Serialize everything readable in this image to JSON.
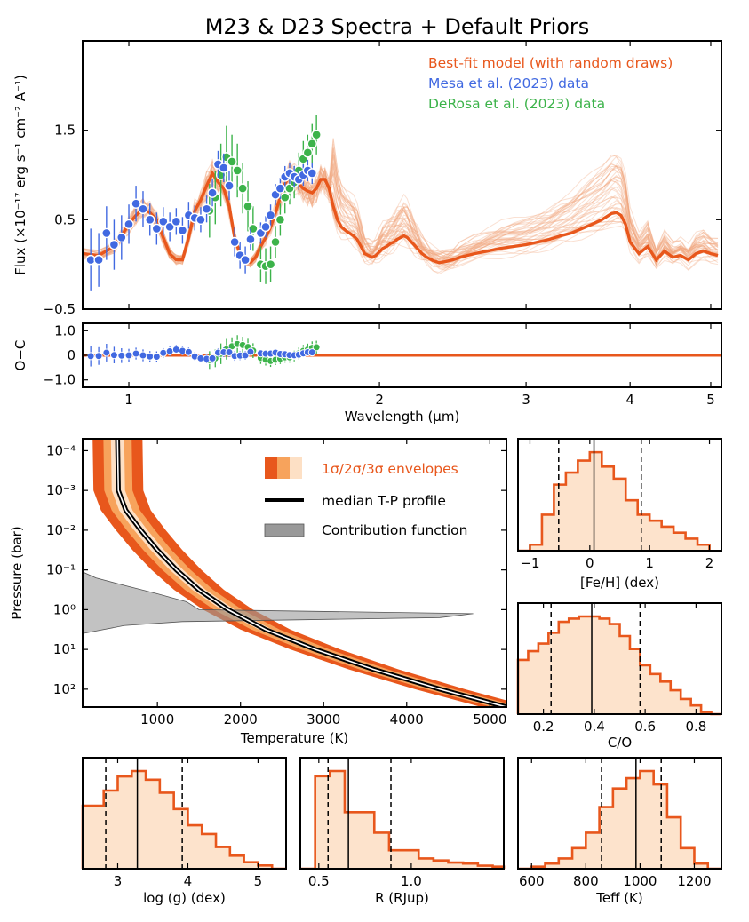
{
  "figure_title": "M23 & D23 Spectra + Default Priors",
  "colors": {
    "model": "#e8571c",
    "draws": "#f1a57f",
    "mesa": "#4169e1",
    "derosa": "#3cb34a",
    "env1": "#e8571c",
    "env2": "#f7a35c",
    "env3": "#fde0c5",
    "hist_fill": "#fde3cc",
    "hist_edge": "#e8571c",
    "contrib": "#999999"
  },
  "chart_data": [
    {
      "id": "spectrum",
      "type": "line",
      "title": "M23 & D23 Spectra + Default Priors",
      "ylabel": "Flux (×10⁻¹⁷ erg s⁻¹ cm⁻² A⁻¹)",
      "xlabel": "",
      "xscale": "log",
      "xlim": [
        0.88,
        5.15
      ],
      "ylim": [
        -0.5,
        2.5
      ],
      "yticks": [
        -0.5,
        0.5,
        1.5
      ],
      "ytick_labels": [
        "−0.5",
        "0.5",
        "1.5"
      ],
      "legend": [
        "Best-fit model (with random draws)",
        "Mesa et al. (2023) data",
        "DeRosa et al. (2023) data"
      ],
      "model_x": [
        0.88,
        0.92,
        0.96,
        0.98,
        1.0,
        1.02,
        1.04,
        1.06,
        1.08,
        1.1,
        1.12,
        1.14,
        1.16,
        1.18,
        1.2,
        1.22,
        1.24,
        1.26,
        1.28,
        1.3,
        1.32,
        1.34,
        1.36,
        1.38,
        1.4,
        1.42,
        1.44,
        1.46,
        1.48,
        1.5,
        1.52,
        1.54,
        1.56,
        1.58,
        1.6,
        1.62,
        1.64,
        1.66,
        1.68,
        1.7,
        1.72,
        1.74,
        1.76,
        1.78,
        1.8,
        1.82,
        1.84,
        1.86,
        1.88,
        1.9,
        1.92,
        1.94,
        1.96,
        1.98,
        2.0,
        2.02,
        2.04,
        2.06,
        2.08,
        2.1,
        2.12,
        2.14,
        2.16,
        2.18,
        2.2,
        2.22,
        2.25,
        2.28,
        2.32,
        2.36,
        2.4,
        2.45,
        2.5,
        2.6,
        2.7,
        2.8,
        2.9,
        3.0,
        3.1,
        3.2,
        3.3,
        3.4,
        3.5,
        3.6,
        3.7,
        3.8,
        3.85,
        3.9,
        3.95,
        4.0,
        4.1,
        4.2,
        4.3,
        4.4,
        4.5,
        4.6,
        4.7,
        4.8,
        4.9,
        5.0,
        5.1
      ],
      "model_y": [
        0.12,
        0.1,
        0.2,
        0.32,
        0.45,
        0.55,
        0.62,
        0.58,
        0.5,
        0.3,
        0.12,
        0.05,
        0.05,
        0.3,
        0.6,
        0.72,
        0.88,
        1.02,
        0.92,
        0.85,
        0.65,
        0.3,
        0.12,
        0.05,
        0.02,
        0.08,
        0.2,
        0.3,
        0.42,
        0.58,
        0.75,
        0.9,
        1.0,
        0.97,
        0.9,
        0.85,
        0.82,
        0.8,
        0.85,
        0.95,
        0.95,
        0.85,
        0.65,
        0.5,
        0.42,
        0.38,
        0.35,
        0.32,
        0.28,
        0.2,
        0.12,
        0.1,
        0.08,
        0.1,
        0.14,
        0.18,
        0.2,
        0.23,
        0.25,
        0.28,
        0.3,
        0.32,
        0.3,
        0.26,
        0.22,
        0.18,
        0.12,
        0.08,
        0.04,
        0.02,
        0.03,
        0.05,
        0.08,
        0.12,
        0.15,
        0.18,
        0.2,
        0.22,
        0.25,
        0.28,
        0.32,
        0.35,
        0.4,
        0.45,
        0.5,
        0.57,
        0.58,
        0.55,
        0.45,
        0.25,
        0.12,
        0.2,
        0.05,
        0.15,
        0.08,
        0.1,
        0.05,
        0.12,
        0.15,
        0.12,
        0.1
      ],
      "n_random_draws": 40,
      "mesa_x": [
        0.9,
        0.92,
        0.94,
        0.96,
        0.98,
        1.0,
        1.02,
        1.04,
        1.06,
        1.08,
        1.1,
        1.12,
        1.14,
        1.16,
        1.18,
        1.2,
        1.22,
        1.24,
        1.26,
        1.28,
        1.3,
        1.32,
        1.34,
        1.36,
        1.38,
        1.4,
        1.44,
        1.46,
        1.48,
        1.5,
        1.52,
        1.54,
        1.56,
        1.58,
        1.6,
        1.62,
        1.64,
        1.66
      ],
      "mesa_y": [
        0.05,
        0.05,
        0.35,
        0.22,
        0.3,
        0.45,
        0.68,
        0.62,
        0.5,
        0.4,
        0.48,
        0.42,
        0.48,
        0.38,
        0.55,
        0.52,
        0.5,
        0.62,
        0.8,
        1.12,
        1.08,
        0.88,
        0.25,
        0.1,
        0.05,
        0.28,
        0.35,
        0.42,
        0.55,
        0.78,
        0.85,
        0.98,
        1.02,
        0.98,
        0.95,
        1.0,
        1.05,
        1.02
      ],
      "mesa_err": [
        0.35,
        0.3,
        0.3,
        0.28,
        0.25,
        0.22,
        0.2,
        0.2,
        0.18,
        0.18,
        0.16,
        0.16,
        0.15,
        0.15,
        0.15,
        0.14,
        0.14,
        0.15,
        0.15,
        0.15,
        0.16,
        0.16,
        0.16,
        0.15,
        0.15,
        0.12,
        0.12,
        0.12,
        0.12,
        0.12,
        0.12,
        0.12,
        0.12,
        0.12,
        0.12,
        0.12,
        0.12,
        0.12
      ],
      "derosa_x": [
        1.25,
        1.27,
        1.29,
        1.31,
        1.33,
        1.35,
        1.37,
        1.39,
        1.41,
        1.44,
        1.46,
        1.48,
        1.5,
        1.52,
        1.54,
        1.56,
        1.58,
        1.6,
        1.62,
        1.64,
        1.66,
        1.68
      ],
      "derosa_y": [
        0.6,
        0.75,
        1.0,
        1.2,
        1.15,
        1.05,
        0.85,
        0.65,
        0.4,
        0.0,
        -0.02,
        0.0,
        0.25,
        0.5,
        0.75,
        0.85,
        0.92,
        1.05,
        1.18,
        1.25,
        1.35,
        1.45
      ],
      "derosa_err": [
        0.3,
        0.3,
        0.35,
        0.35,
        0.3,
        0.3,
        0.28,
        0.28,
        0.25,
        0.2,
        0.2,
        0.2,
        0.18,
        0.18,
        0.18,
        0.18,
        0.18,
        0.2,
        0.2,
        0.2,
        0.22,
        0.22
      ]
    },
    {
      "id": "residuals",
      "type": "scatter",
      "ylabel": "O−C",
      "xlabel": "Wavelength (μm)",
      "xscale": "log",
      "xlim": [
        0.88,
        5.15
      ],
      "xticks": [
        1,
        2,
        3,
        4,
        5
      ],
      "xtick_labels": [
        "1",
        "2",
        "3",
        "4",
        "5"
      ],
      "ylim": [
        -1.3,
        1.3
      ],
      "yticks": [
        -1.0,
        0,
        1.0
      ],
      "ytick_labels": [
        "−1.0",
        "0",
        "1.0"
      ]
    },
    {
      "id": "tp_profile",
      "type": "area",
      "xlabel": "Temperature (K)",
      "ylabel": "Pressure (bar)",
      "xlim": [
        100,
        5200
      ],
      "xticks": [
        1000,
        2000,
        3000,
        4000,
        5000
      ],
      "xtick_labels": [
        "1000",
        "2000",
        "3000",
        "4000",
        "5000"
      ],
      "yscale": "log",
      "ylim_log10": [
        -4.3,
        2.45
      ],
      "yticks_log10": [
        -4,
        -3,
        -2,
        -1,
        0,
        1,
        2
      ],
      "ytick_labels": [
        "10⁻⁴",
        "10⁻³",
        "10⁻²",
        "10⁻¹",
        "10⁰",
        "10¹",
        "10²"
      ],
      "legend": [
        "1σ/2σ/3σ envelopes",
        "median T-P profile",
        "Contribution function"
      ],
      "median_logP": [
        -4.3,
        -3.0,
        -2.5,
        -2.0,
        -1.5,
        -1.0,
        -0.5,
        0.0,
        0.5,
        1.0,
        1.5,
        2.0,
        2.45
      ],
      "median_T": [
        520,
        530,
        620,
        800,
        1000,
        1230,
        1500,
        1850,
        2300,
        2900,
        3600,
        4400,
        5200
      ],
      "envelope_offsets_K": [
        [
          -80,
          80
        ],
        [
          -170,
          170
        ],
        [
          -300,
          300
        ]
      ],
      "contrib_logP": [
        -0.95,
        -0.8,
        -0.6,
        -0.4,
        -0.2,
        0.0,
        0.1,
        0.2,
        0.3,
        0.4,
        0.6
      ],
      "contrib_width_K": [
        0,
        160,
        520,
        900,
        1250,
        1400,
        4700,
        4300,
        1200,
        500,
        0
      ]
    },
    {
      "id": "hist_feh",
      "type": "bar",
      "xlabel": "[Fe/H] (dex)",
      "xlim": [
        -1.2,
        2.2
      ],
      "xticks": [
        -1,
        0,
        1,
        2
      ],
      "xtick_labels": [
        "−1",
        "0",
        "1",
        "2"
      ],
      "bin_edges": [
        -1.2,
        -1.0,
        -0.8,
        -0.6,
        -0.4,
        -0.2,
        0.0,
        0.2,
        0.4,
        0.6,
        0.8,
        1.0,
        1.2,
        1.4,
        1.6,
        1.8,
        2.0
      ],
      "counts": [
        0,
        0.05,
        0.3,
        0.55,
        0.65,
        0.75,
        0.82,
        0.7,
        0.6,
        0.42,
        0.3,
        0.25,
        0.2,
        0.15,
        0.1,
        0.05
      ],
      "median": 0.07,
      "lower": -0.52,
      "upper": 0.86
    },
    {
      "id": "hist_co",
      "type": "bar",
      "xlabel": "C/O",
      "xlim": [
        0.1,
        0.9
      ],
      "xticks": [
        0.2,
        0.4,
        0.6,
        0.8
      ],
      "xtick_labels": [
        "0.2",
        "0.4",
        "0.6",
        "0.8"
      ],
      "bin_edges": [
        0.1,
        0.14,
        0.18,
        0.22,
        0.26,
        0.3,
        0.34,
        0.38,
        0.42,
        0.46,
        0.5,
        0.54,
        0.58,
        0.62,
        0.66,
        0.7,
        0.74,
        0.78,
        0.82,
        0.86,
        0.9
      ],
      "counts": [
        0.5,
        0.58,
        0.65,
        0.75,
        0.85,
        0.88,
        0.9,
        0.9,
        0.88,
        0.83,
        0.72,
        0.6,
        0.45,
        0.37,
        0.3,
        0.22,
        0.14,
        0.08,
        0.02,
        0.0
      ],
      "median": 0.39,
      "lower": 0.23,
      "upper": 0.58
    },
    {
      "id": "hist_logg",
      "type": "bar",
      "xlabel": "log (g) (dex)",
      "xlim": [
        2.5,
        5.4
      ],
      "xticks": [
        3,
        4,
        5
      ],
      "xtick_labels": [
        "3",
        "4",
        "5"
      ],
      "bin_edges": [
        2.5,
        2.8,
        3.0,
        3.2,
        3.4,
        3.6,
        3.8,
        4.0,
        4.2,
        4.4,
        4.6,
        4.8,
        5.0,
        5.2,
        5.4
      ],
      "counts": [
        0.58,
        0.72,
        0.85,
        0.9,
        0.82,
        0.7,
        0.55,
        0.4,
        0.32,
        0.2,
        0.12,
        0.06,
        0.03,
        0.0
      ],
      "median": 3.28,
      "lower": 2.83,
      "upper": 3.92
    },
    {
      "id": "hist_r",
      "type": "bar",
      "xlabel": "R (RJup)",
      "xlim": [
        0.4,
        1.5
      ],
      "xticks": [
        0.5,
        1.0
      ],
      "xtick_labels": [
        "0.5",
        "1.0"
      ],
      "bin_edges": [
        0.4,
        0.48,
        0.56,
        0.64,
        0.72,
        0.8,
        0.88,
        0.96,
        1.04,
        1.12,
        1.2,
        1.28,
        1.36,
        1.44,
        1.5
      ],
      "counts": [
        0.0,
        0.9,
        0.95,
        0.55,
        0.55,
        0.35,
        0.18,
        0.18,
        0.1,
        0.08,
        0.06,
        0.05,
        0.03,
        0.02
      ],
      "median": 0.66,
      "lower": 0.55,
      "upper": 0.89
    },
    {
      "id": "hist_teff",
      "type": "bar",
      "xlabel": "Teff (K)",
      "xlim": [
        550,
        1300
      ],
      "xticks": [
        600,
        800,
        1000,
        1200
      ],
      "xtick_labels": [
        "600",
        "800",
        "1000",
        "1200"
      ],
      "bin_edges": [
        550,
        600,
        650,
        700,
        750,
        800,
        850,
        900,
        950,
        1000,
        1050,
        1100,
        1150,
        1200,
        1250,
        1300
      ],
      "counts": [
        0,
        0.02,
        0.05,
        0.1,
        0.2,
        0.35,
        0.6,
        0.78,
        0.88,
        0.95,
        0.82,
        0.5,
        0.2,
        0.05,
        0.0
      ],
      "median": 985,
      "lower": 858,
      "upper": 1078
    }
  ]
}
